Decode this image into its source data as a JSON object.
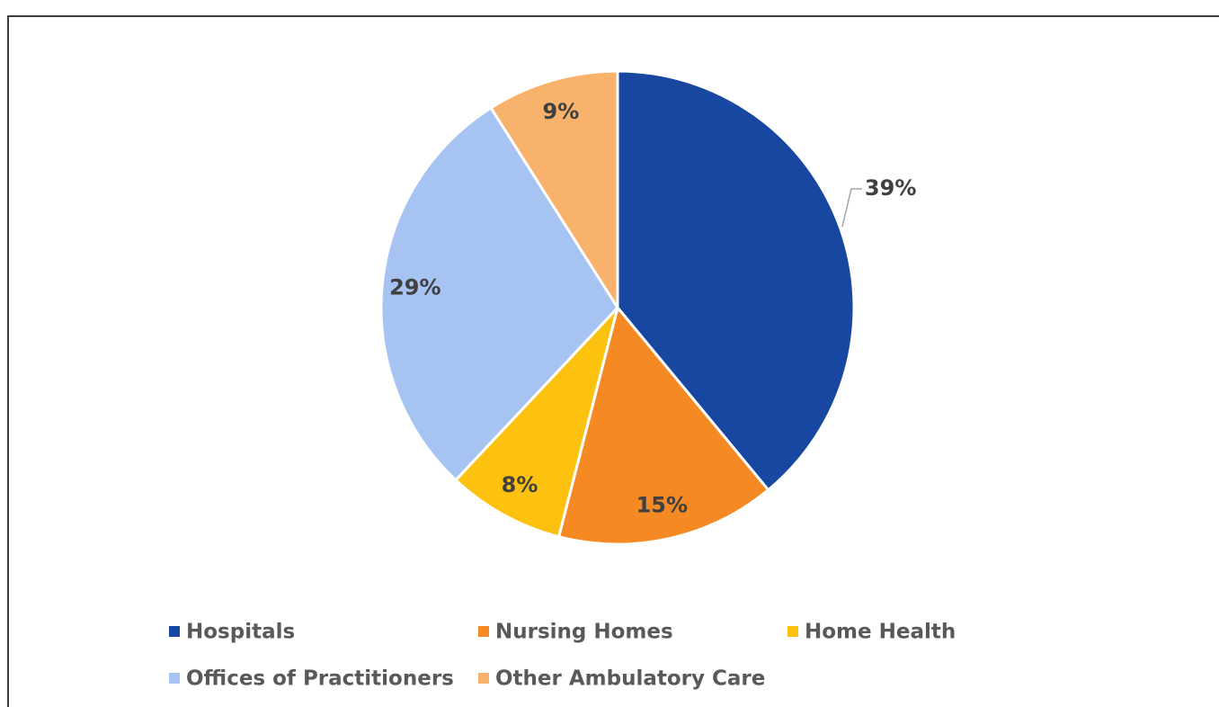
{
  "chart_data": {
    "type": "pie",
    "categories": [
      "Hospitals",
      "Nursing Homes",
      "Home Health",
      "Offices of Practitioners",
      "Other Ambulatory Care"
    ],
    "values": [
      39,
      15,
      8,
      29,
      9
    ],
    "value_labels": [
      "39%",
      "15%",
      "8%",
      "29%",
      "9%"
    ],
    "colors": [
      "#1747a0",
      "#f58a24",
      "#fdc20f",
      "#a6c3f2",
      "#f9b26b"
    ],
    "legend": "bottom"
  }
}
